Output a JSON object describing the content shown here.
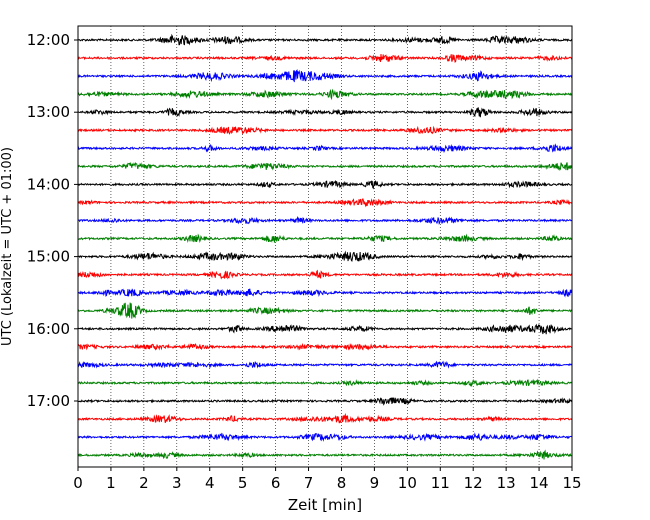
{
  "chart_data": {
    "type": "line",
    "subtype": "helicorder",
    "xlabel": "Zeit  [min]",
    "ylabel": "UTC (Lokalzeit = UTC + 01:00)",
    "xlim": [
      0,
      15
    ],
    "x_ticks": [
      0,
      1,
      2,
      3,
      4,
      5,
      6,
      7,
      8,
      9,
      10,
      11,
      12,
      13,
      14,
      15
    ],
    "grid": "vertical dotted lines at each minute",
    "trace_interval_minutes": 15,
    "y_tick_labels": [
      "12:00",
      "13:00",
      "14:00",
      "15:00",
      "16:00",
      "17:00"
    ],
    "color_cycle": [
      "#000000",
      "#ff0000",
      "#0000ff",
      "#008000"
    ],
    "traces": [
      {
        "label": "12:00",
        "color": "#000000"
      },
      {
        "label": "12:15",
        "color": "#ff0000"
      },
      {
        "label": "12:30",
        "color": "#0000ff"
      },
      {
        "label": "12:45",
        "color": "#008000"
      },
      {
        "label": "13:00",
        "color": "#000000"
      },
      {
        "label": "13:15",
        "color": "#ff0000"
      },
      {
        "label": "13:30",
        "color": "#0000ff"
      },
      {
        "label": "13:45",
        "color": "#008000"
      },
      {
        "label": "14:00",
        "color": "#000000"
      },
      {
        "label": "14:15",
        "color": "#ff0000"
      },
      {
        "label": "14:30",
        "color": "#0000ff"
      },
      {
        "label": "14:45",
        "color": "#008000"
      },
      {
        "label": "15:00",
        "color": "#000000"
      },
      {
        "label": "15:15",
        "color": "#ff0000"
      },
      {
        "label": "15:30",
        "color": "#0000ff"
      },
      {
        "label": "15:45",
        "color": "#008000"
      },
      {
        "label": "16:00",
        "color": "#000000"
      },
      {
        "label": "16:15",
        "color": "#ff0000"
      },
      {
        "label": "16:30",
        "color": "#0000ff"
      },
      {
        "label": "16:45",
        "color": "#008000"
      },
      {
        "label": "17:00",
        "color": "#000000"
      },
      {
        "label": "17:15",
        "color": "#ff0000"
      },
      {
        "label": "17:30",
        "color": "#0000ff"
      },
      {
        "label": "17:45",
        "color": "#008000"
      }
    ]
  }
}
